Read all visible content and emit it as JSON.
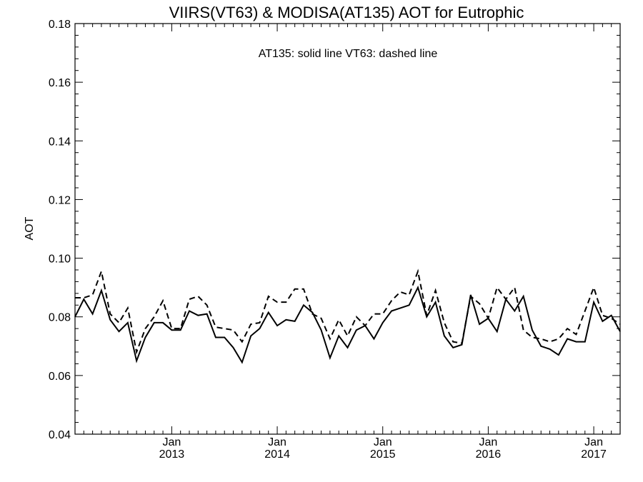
{
  "chart_data": {
    "type": "line",
    "title": "VIIRS(VT63) & MODISA(AT135)  AOT for Eutrophic",
    "annotation": "AT135: solid line   VT63: dashed line",
    "ylabel": "AOT",
    "xlabel": "",
    "ylim": [
      0.04,
      0.18
    ],
    "yticks": [
      "0.04",
      "0.06",
      "0.08",
      "0.10",
      "0.12",
      "0.14",
      "0.16",
      "0.18"
    ],
    "xlim": [
      "2012-02",
      "2017-04"
    ],
    "xticks": [
      {
        "month": "Jan",
        "year": "2013",
        "date": "2013-01"
      },
      {
        "month": "Jan",
        "year": "2014",
        "date": "2014-01"
      },
      {
        "month": "Jan",
        "year": "2015",
        "date": "2015-01"
      },
      {
        "month": "Jan",
        "year": "2016",
        "date": "2016-01"
      },
      {
        "month": "Jan",
        "year": "2017",
        "date": "2017-01"
      }
    ],
    "x": [
      "2012-02",
      "2012-03",
      "2012-04",
      "2012-05",
      "2012-06",
      "2012-07",
      "2012-08",
      "2012-09",
      "2012-10",
      "2012-11",
      "2012-12",
      "2013-01",
      "2013-02",
      "2013-03",
      "2013-04",
      "2013-05",
      "2013-06",
      "2013-07",
      "2013-08",
      "2013-09",
      "2013-10",
      "2013-11",
      "2013-12",
      "2014-01",
      "2014-02",
      "2014-03",
      "2014-04",
      "2014-05",
      "2014-06",
      "2014-07",
      "2014-08",
      "2014-09",
      "2014-10",
      "2014-11",
      "2014-12",
      "2015-01",
      "2015-02",
      "2015-03",
      "2015-04",
      "2015-05",
      "2015-06",
      "2015-07",
      "2015-08",
      "2015-09",
      "2015-10",
      "2015-11",
      "2015-12",
      "2016-01",
      "2016-02",
      "2016-03",
      "2016-04",
      "2016-05",
      "2016-06",
      "2016-07",
      "2016-08",
      "2016-09",
      "2016-10",
      "2016-11",
      "2016-12",
      "2017-01",
      "2017-02",
      "2017-03",
      "2017-04"
    ],
    "series": [
      {
        "name": "AT135",
        "line_style": "solid",
        "color": "#000000",
        "values": [
          0.08,
          0.086,
          0.081,
          0.089,
          0.079,
          0.075,
          0.078,
          0.065,
          0.073,
          0.078,
          0.078,
          0.0755,
          0.0755,
          0.082,
          0.0805,
          0.081,
          0.073,
          0.073,
          0.0695,
          0.0645,
          0.0735,
          0.076,
          0.0815,
          0.077,
          0.079,
          0.0785,
          0.084,
          0.0815,
          0.0755,
          0.066,
          0.0735,
          0.0695,
          0.0755,
          0.077,
          0.0725,
          0.078,
          0.082,
          0.083,
          0.084,
          0.09,
          0.08,
          0.085,
          0.0735,
          0.0695,
          0.0705,
          0.0875,
          0.0775,
          0.0795,
          0.075,
          0.086,
          0.082,
          0.087,
          0.0755,
          0.07,
          0.069,
          0.067,
          0.0725,
          0.0715,
          0.0715,
          0.085,
          0.0785,
          0.0805,
          0.075
        ]
      },
      {
        "name": "VT63",
        "line_style": "dashed",
        "color": "#000000",
        "values": [
          0.0865,
          0.0865,
          0.0875,
          0.0955,
          0.081,
          0.078,
          0.083,
          0.068,
          0.076,
          0.08,
          0.0855,
          0.076,
          0.076,
          0.086,
          0.087,
          0.084,
          0.0765,
          0.076,
          0.0755,
          0.0715,
          0.0775,
          0.078,
          0.087,
          0.085,
          0.085,
          0.0895,
          0.0895,
          0.081,
          0.0795,
          0.0725,
          0.079,
          0.0735,
          0.08,
          0.077,
          0.081,
          0.081,
          0.0855,
          0.0885,
          0.0875,
          0.0955,
          0.0805,
          0.089,
          0.078,
          0.0715,
          0.071,
          0.087,
          0.0845,
          0.0795,
          0.09,
          0.086,
          0.09,
          0.0755,
          0.073,
          0.0725,
          0.0715,
          0.0725,
          0.076,
          0.074,
          0.082,
          0.09,
          0.0805,
          0.0795,
          0.0775
        ]
      }
    ],
    "grid": false,
    "legend": "none"
  }
}
